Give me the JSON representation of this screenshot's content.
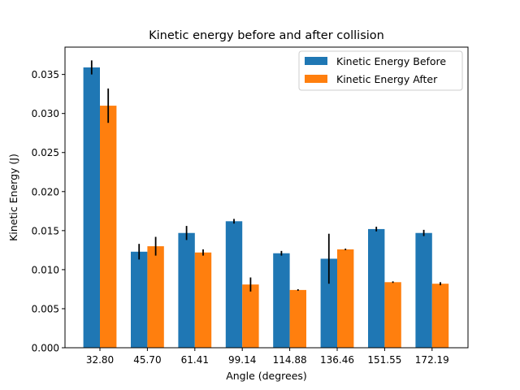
{
  "chart_data": {
    "type": "bar",
    "title": "Kinetic energy before and after collision",
    "xlabel": "Angle (degrees)",
    "ylabel": "Kinetic Energy (J)",
    "categories": [
      "32.80",
      "45.70",
      "61.41",
      "99.14",
      "114.88",
      "136.46",
      "151.55",
      "172.19"
    ],
    "ylim": [
      0,
      0.0385
    ],
    "yticks": [
      0.0,
      0.005,
      0.01,
      0.015,
      0.02,
      0.025,
      0.03,
      0.035
    ],
    "ytick_labels": [
      "0.000",
      "0.005",
      "0.010",
      "0.015",
      "0.020",
      "0.025",
      "0.030",
      "0.035"
    ],
    "grid": false,
    "legend_position": "top-right",
    "series": [
      {
        "name": "Kinetic Energy Before",
        "color": "#1f77b4",
        "values": [
          0.0359,
          0.0123,
          0.0147,
          0.0162,
          0.0121,
          0.0114,
          0.0152,
          0.0147
        ],
        "errors": [
          0.0009,
          0.001,
          0.0009,
          0.0003,
          0.0003,
          0.0032,
          0.0003,
          0.0004
        ]
      },
      {
        "name": "Kinetic Energy After",
        "color": "#ff7f0e",
        "values": [
          0.031,
          0.013,
          0.0122,
          0.0081,
          0.0074,
          0.0126,
          0.0084,
          0.0082
        ],
        "errors": [
          0.0022,
          0.0012,
          0.0004,
          0.0009,
          0.0001,
          0.0001,
          0.0001,
          0.0002
        ]
      }
    ]
  }
}
